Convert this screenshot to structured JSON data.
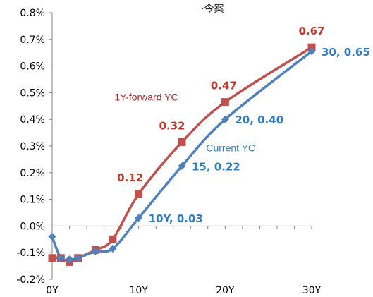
{
  "chart_data": {
    "type": "line",
    "title": "",
    "xlabel": "",
    "ylabel": "",
    "xlim": [
      0,
      30
    ],
    "ylim": [
      -0.2,
      0.8
    ],
    "grid": false,
    "x_ticks": [
      "0Y",
      "10Y",
      "20Y",
      "30Y"
    ],
    "x_tick_values": [
      0,
      10,
      20,
      30
    ],
    "y_ticks": [
      "-0.2%",
      "-0.1%",
      "0.0%",
      "0.1%",
      "0.2%",
      "0.3%",
      "0.4%",
      "0.5%",
      "0.6%",
      "0.7%",
      "0.8%"
    ],
    "y_tick_values": [
      -0.2,
      -0.1,
      0.0,
      0.1,
      0.2,
      0.3,
      0.4,
      0.5,
      0.6,
      0.7,
      0.8
    ],
    "series": [
      {
        "name": "1Y-forward YC",
        "color": "#c0504d",
        "marker": "square",
        "x": [
          0,
          1,
          2,
          3,
          5,
          7,
          10,
          15,
          20,
          30
        ],
        "y": [
          -0.12,
          -0.12,
          -0.135,
          -0.12,
          -0.09,
          -0.05,
          0.12,
          0.315,
          0.465,
          0.67
        ]
      },
      {
        "name": "Current YC",
        "color": "#4f81bd",
        "marker": "diamond",
        "x": [
          0,
          1,
          2,
          3,
          5,
          7,
          10,
          15,
          20,
          30
        ],
        "y": [
          -0.04,
          -0.12,
          -0.125,
          -0.12,
          -0.095,
          -0.085,
          0.03,
          0.225,
          0.4,
          0.655
        ]
      }
    ],
    "annotations": [
      {
        "text": "0.67",
        "series": 0,
        "x": 30,
        "dx": 0,
        "dy": -18
      },
      {
        "text": "0.47",
        "series": 0,
        "x": 20,
        "dx": -2,
        "dy": -18
      },
      {
        "text": "0.32",
        "series": 0,
        "x": 15,
        "dx": -14,
        "dy": -18
      },
      {
        "text": "0.12",
        "series": 0,
        "x": 10,
        "dx": -12,
        "dy": -18
      },
      {
        "text": "30, 0.65",
        "series": 1,
        "x": 30,
        "dx": 14,
        "dy": 6
      },
      {
        "text": "20, 0.40",
        "series": 1,
        "x": 20,
        "dx": 14,
        "dy": 6
      },
      {
        "text": "15, 0.22",
        "series": 1,
        "x": 15,
        "dx": 14,
        "dy": 6
      },
      {
        "text": "10Y, 0.03",
        "series": 1,
        "x": 10,
        "dx": 14,
        "dy": 6
      }
    ],
    "series_labels": [
      {
        "text": "1Y-forward YC",
        "series": 0,
        "x": 7.2,
        "y": 0.47
      },
      {
        "text": "Current YC",
        "series": 1,
        "x": 17.8,
        "y": 0.28
      }
    ],
    "partial_title": "·今案"
  }
}
